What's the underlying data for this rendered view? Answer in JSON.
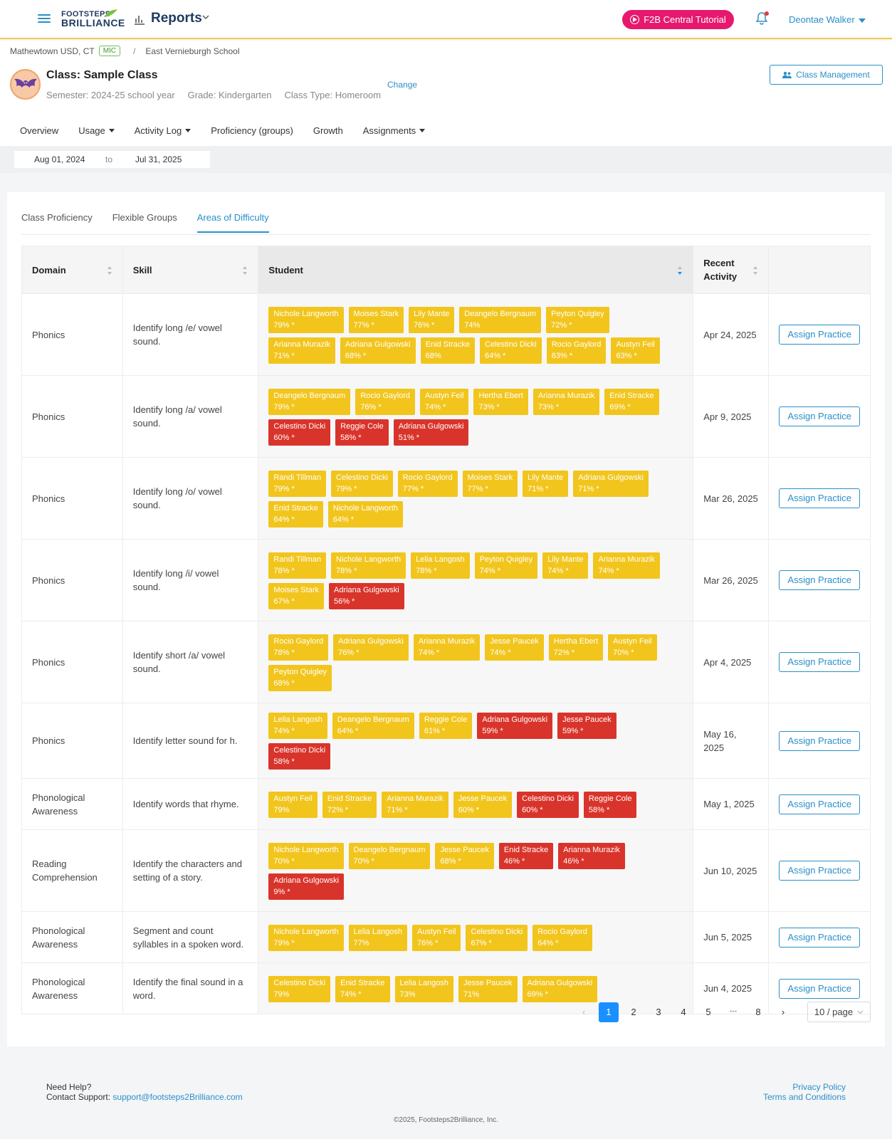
{
  "header": {
    "logo_line1": "FOOTSTEPS",
    "logo_line2": "BRILLIANCE",
    "title": "Reports",
    "tutorial_button": "F2B Central Tutorial",
    "user_name": "Deontae Walker"
  },
  "breadcrumb": {
    "district": "Mathewtown USD, CT",
    "badge": "MIC",
    "separator": "/",
    "school": "East Vernieburgh School"
  },
  "class_info": {
    "title": "Class: Sample Class",
    "semester": "Semester: 2024-25 school year",
    "grade": "Grade: Kindergarten",
    "class_type": "Class Type: Homeroom",
    "change_link": "Change",
    "management_button": "Class Management"
  },
  "nav_tabs": [
    "Overview",
    "Usage",
    "Activity Log",
    "Proficiency (groups)",
    "Growth",
    "Assignments"
  ],
  "date_range": {
    "start": "Aug 01, 2024",
    "to": "to",
    "end": "Jul 31, 2025"
  },
  "sub_tabs": [
    "Class Proficiency",
    "Flexible Groups",
    "Areas of Difficulty"
  ],
  "active_sub_tab": "Areas of Difficulty",
  "table": {
    "headers": {
      "domain": "Domain",
      "skill": "Skill",
      "student": "Student",
      "recent": "Recent Activity"
    },
    "assign_label": "Assign Practice",
    "rows": [
      {
        "domain": "Phonics",
        "skill": "Identify long /e/ vowel sound.",
        "recent": "Apr 24, 2025",
        "students": [
          {
            "name": "Nichole Langworth",
            "score": "79% *",
            "level": "y"
          },
          {
            "name": "Moises Stark",
            "score": "77% *",
            "level": "y"
          },
          {
            "name": "Lily Mante",
            "score": "76% *",
            "level": "y"
          },
          {
            "name": "Deangelo Bergnaum",
            "score": "74%",
            "level": "y"
          },
          {
            "name": "Peyton Quigley",
            "score": "72% *",
            "level": "y"
          },
          {
            "name": "Arianna Murazik",
            "score": "71% *",
            "level": "y"
          },
          {
            "name": "Adriana Gulgowski",
            "score": "68% *",
            "level": "y"
          },
          {
            "name": "Enid Stracke",
            "score": "68%",
            "level": "y"
          },
          {
            "name": "Celestino Dicki",
            "score": "64% *",
            "level": "y"
          },
          {
            "name": "Rocio Gaylord",
            "score": "63% *",
            "level": "y"
          },
          {
            "name": "Austyn Feil",
            "score": "63% *",
            "level": "y"
          }
        ]
      },
      {
        "domain": "Phonics",
        "skill": "Identify long /a/ vowel sound.",
        "recent": "Apr 9, 2025",
        "students": [
          {
            "name": "Deangelo Bergnaum",
            "score": "79% *",
            "level": "y"
          },
          {
            "name": "Rocio Gaylord",
            "score": "76% *",
            "level": "y"
          },
          {
            "name": "Austyn Feil",
            "score": "74% *",
            "level": "y"
          },
          {
            "name": "Hertha Ebert",
            "score": "73% *",
            "level": "y"
          },
          {
            "name": "Arianna Murazik",
            "score": "73% *",
            "level": "y"
          },
          {
            "name": "Enid Stracke",
            "score": "69% *",
            "level": "y"
          },
          {
            "name": "Celestino Dicki",
            "score": "60% *",
            "level": "r"
          },
          {
            "name": "Reggie Cole",
            "score": "58% *",
            "level": "r"
          },
          {
            "name": "Adriana Gulgowski",
            "score": "51% *",
            "level": "r"
          }
        ]
      },
      {
        "domain": "Phonics",
        "skill": "Identify long /o/ vowel sound.",
        "recent": "Mar 26, 2025",
        "students": [
          {
            "name": "Randi Tillman",
            "score": "79% *",
            "level": "y"
          },
          {
            "name": "Celestino Dicki",
            "score": "79% *",
            "level": "y"
          },
          {
            "name": "Rocio Gaylord",
            "score": "77% *",
            "level": "y"
          },
          {
            "name": "Moises Stark",
            "score": "77% *",
            "level": "y"
          },
          {
            "name": "Lily Mante",
            "score": "71% *",
            "level": "y"
          },
          {
            "name": "Adriana Gulgowski",
            "score": "71% *",
            "level": "y"
          },
          {
            "name": "Enid Stracke",
            "score": "64% *",
            "level": "y"
          },
          {
            "name": "Nichole Langworth",
            "score": "64% *",
            "level": "y"
          }
        ]
      },
      {
        "domain": "Phonics",
        "skill": "Identify long /i/ vowel sound.",
        "recent": "Mar 26, 2025",
        "students": [
          {
            "name": "Randi Tillman",
            "score": "78% *",
            "level": "y"
          },
          {
            "name": "Nichole Langworth",
            "score": "78% *",
            "level": "y"
          },
          {
            "name": "Lelia Langosh",
            "score": "78% *",
            "level": "y"
          },
          {
            "name": "Peyton Quigley",
            "score": "74% *",
            "level": "y"
          },
          {
            "name": "Lily Mante",
            "score": "74% *",
            "level": "y"
          },
          {
            "name": "Arianna Murazik",
            "score": "74% *",
            "level": "y"
          },
          {
            "name": "Moises Stark",
            "score": "67% *",
            "level": "y"
          },
          {
            "name": "Adriana Gulgowski",
            "score": "56% *",
            "level": "r"
          }
        ]
      },
      {
        "domain": "Phonics",
        "skill": "Identify short /a/ vowel sound.",
        "recent": "Apr 4, 2025",
        "students": [
          {
            "name": "Rocio Gaylord",
            "score": "78% *",
            "level": "y"
          },
          {
            "name": "Adriana Gulgowski",
            "score": "76% *",
            "level": "y"
          },
          {
            "name": "Arianna Murazik",
            "score": "74% *",
            "level": "y"
          },
          {
            "name": "Jesse Paucek",
            "score": "74% *",
            "level": "y"
          },
          {
            "name": "Hertha Ebert",
            "score": "72% *",
            "level": "y"
          },
          {
            "name": "Austyn Feil",
            "score": "70% *",
            "level": "y"
          },
          {
            "name": "Peyton Quigley",
            "score": "68% *",
            "level": "y"
          }
        ]
      },
      {
        "domain": "Phonics",
        "skill": "Identify letter sound for h.",
        "recent": "May 16, 2025",
        "students": [
          {
            "name": "Lelia Langosh",
            "score": "74% *",
            "level": "y"
          },
          {
            "name": "Deangelo Bergnaum",
            "score": "64% *",
            "level": "y"
          },
          {
            "name": "Reggie Cole",
            "score": "61% *",
            "level": "y"
          },
          {
            "name": "Adriana Gulgowski",
            "score": "59% *",
            "level": "r"
          },
          {
            "name": "Jesse Paucek",
            "score": "59% *",
            "level": "r"
          },
          {
            "name": "Celestino Dicki",
            "score": "58% *",
            "level": "r"
          }
        ]
      },
      {
        "domain": "Phonological Awareness",
        "skill": "Identify words that rhyme.",
        "recent": "May 1, 2025",
        "students": [
          {
            "name": "Austyn Feil",
            "score": "79%",
            "level": "y"
          },
          {
            "name": "Enid Stracke",
            "score": "72% *",
            "level": "y"
          },
          {
            "name": "Arianna Murazik",
            "score": "71% *",
            "level": "y"
          },
          {
            "name": "Jesse Paucek",
            "score": "60% *",
            "level": "y"
          },
          {
            "name": "Celestino Dicki",
            "score": "60% *",
            "level": "r"
          },
          {
            "name": "Reggie Cole",
            "score": "58% *",
            "level": "r"
          }
        ]
      },
      {
        "domain": "Reading Comprehension",
        "skill": "Identify the characters and setting of a story.",
        "recent": "Jun 10, 2025",
        "students": [
          {
            "name": "Nichole Langworth",
            "score": "70% *",
            "level": "y"
          },
          {
            "name": "Deangelo Bergnaum",
            "score": "70% *",
            "level": "y"
          },
          {
            "name": "Jesse Paucek",
            "score": "68% *",
            "level": "y"
          },
          {
            "name": "Enid Stracke",
            "score": "46% *",
            "level": "r"
          },
          {
            "name": "Arianna Murazik",
            "score": "46% *",
            "level": "r"
          },
          {
            "name": "Adriana Gulgowski",
            "score": "9% *",
            "level": "r"
          }
        ]
      },
      {
        "domain": "Phonological Awareness",
        "skill": "Segment and count syllables in a spoken word.",
        "recent": "Jun 5, 2025",
        "students": [
          {
            "name": "Nichole Langworth",
            "score": "79% *",
            "level": "y"
          },
          {
            "name": "Lelia Langosh",
            "score": "77%",
            "level": "y"
          },
          {
            "name": "Austyn Feil",
            "score": "76% *",
            "level": "y"
          },
          {
            "name": "Celestino Dicki",
            "score": "67% *",
            "level": "y"
          },
          {
            "name": "Rocio Gaylord",
            "score": "64% *",
            "level": "y"
          }
        ]
      },
      {
        "domain": "Phonological Awareness",
        "skill": "Identify the final sound in a word.",
        "recent": "Jun 4, 2025",
        "students": [
          {
            "name": "Celestino Dicki",
            "score": "79%",
            "level": "y"
          },
          {
            "name": "Enid Stracke",
            "score": "74% *",
            "level": "y"
          },
          {
            "name": "Lelia Langosh",
            "score": "73%",
            "level": "y"
          },
          {
            "name": "Jesse Paucek",
            "score": "71%",
            "level": "y"
          },
          {
            "name": "Adriana Gulgowski",
            "score": "69% *",
            "level": "y"
          }
        ]
      }
    ]
  },
  "pagination": {
    "pages": [
      "1",
      "2",
      "3",
      "4",
      "5",
      "•••",
      "8"
    ],
    "current": "1",
    "per_page": "10 / page"
  },
  "footer": {
    "need_help": "Need Help?",
    "contact_label": "Contact Support:",
    "support_email": "support@footsteps2Brilliance.com",
    "privacy": "Privacy Policy",
    "terms": "Terms and Conditions",
    "copyright": "©2025, Footsteps2Brilliance, Inc."
  },
  "colors": {
    "accent": "#2a8fc9",
    "brand_pink": "#e6196e",
    "chip_yellow": "#f2c51d",
    "chip_red": "#d9342b"
  }
}
